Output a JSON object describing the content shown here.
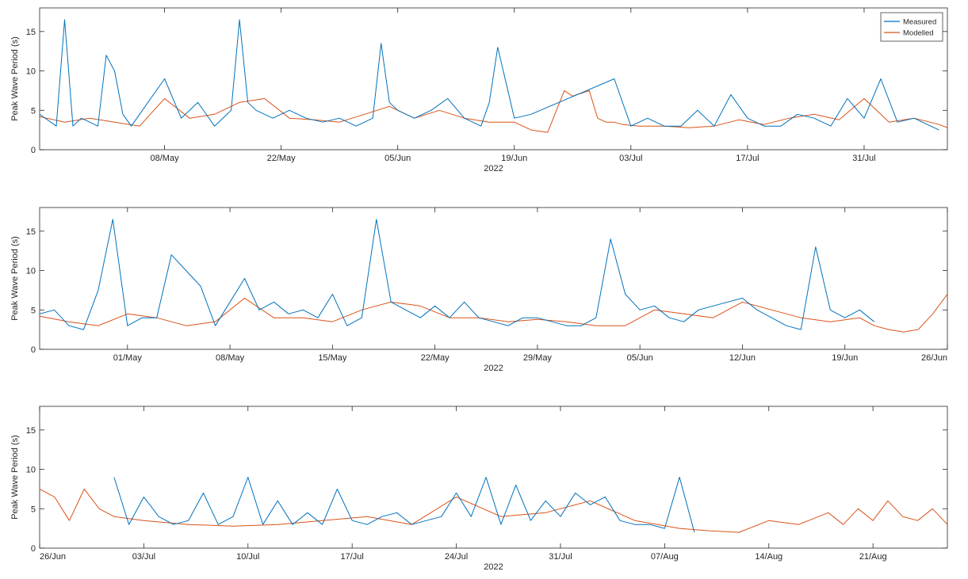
{
  "colors": {
    "measured": "#0072BD",
    "modelled": "#D95319",
    "axes": "#262626"
  },
  "chart_data": [
    {
      "type": "line",
      "ylabel": "Peak Wave Period (s)",
      "xlabel": "2022",
      "xlim": [
        "2022-04-23",
        "2022-08-10"
      ],
      "ylim": [
        0,
        18
      ],
      "yticks": [
        0,
        5,
        10,
        15
      ],
      "xticks": [
        {
          "date": "2022-05-08",
          "label": "08/May"
        },
        {
          "date": "2022-05-22",
          "label": "22/May"
        },
        {
          "date": "2022-06-05",
          "label": "05/Jun"
        },
        {
          "date": "2022-06-19",
          "label": "19/Jun"
        },
        {
          "date": "2022-07-03",
          "label": "03/Jul"
        },
        {
          "date": "2022-07-17",
          "label": "17/Jul"
        },
        {
          "date": "2022-07-31",
          "label": "31/Jul"
        }
      ],
      "grid": false,
      "legend": {
        "position": "top-right",
        "entries": [
          "Measured",
          "Modelled"
        ]
      },
      "series": [
        {
          "name": "Measured",
          "x": [
            "2022-04-23",
            "2022-04-25",
            "2022-04-26",
            "2022-04-27",
            "2022-04-28",
            "2022-04-30",
            "2022-05-01",
            "2022-05-02",
            "2022-05-03",
            "2022-05-04",
            "2022-05-06",
            "2022-05-08",
            "2022-05-10",
            "2022-05-12",
            "2022-05-14",
            "2022-05-16",
            "2022-05-17",
            "2022-05-18",
            "2022-05-19",
            "2022-05-21",
            "2022-05-23",
            "2022-05-25",
            "2022-05-27",
            "2022-05-29",
            "2022-05-31",
            "2022-06-02",
            "2022-06-03",
            "2022-06-04",
            "2022-06-05",
            "2022-06-07",
            "2022-06-09",
            "2022-06-11",
            "2022-06-13",
            "2022-06-15",
            "2022-06-16",
            "2022-06-17",
            "2022-06-19",
            "2022-06-21",
            "2022-07-01",
            "2022-07-03",
            "2022-07-05",
            "2022-07-07",
            "2022-07-09",
            "2022-07-11",
            "2022-07-13",
            "2022-07-15",
            "2022-07-17",
            "2022-07-19",
            "2022-07-21",
            "2022-07-23",
            "2022-07-25",
            "2022-07-27",
            "2022-07-29",
            "2022-07-31",
            "2022-08-02",
            "2022-08-04",
            "2022-08-06",
            "2022-08-08",
            "2022-08-09"
          ],
          "y": [
            4.5,
            3,
            16.5,
            3,
            4,
            3,
            12,
            10,
            4.5,
            3,
            6,
            9,
            4,
            6,
            3,
            5,
            16.5,
            6,
            5,
            4,
            5,
            4,
            3.5,
            4,
            3,
            4,
            13.5,
            6,
            5,
            4,
            5,
            6.5,
            4,
            3,
            6,
            13,
            4,
            4.5,
            9,
            3,
            4,
            3,
            3,
            5,
            3,
            7,
            4,
            3,
            3,
            4.5,
            4,
            3,
            6.5,
            4,
            9,
            3.5,
            4,
            3,
            2.5
          ]
        },
        {
          "name": "Modelled",
          "x": [
            "2022-04-23",
            "2022-04-26",
            "2022-04-29",
            "2022-05-02",
            "2022-05-05",
            "2022-05-08",
            "2022-05-11",
            "2022-05-14",
            "2022-05-17",
            "2022-05-20",
            "2022-05-23",
            "2022-05-26",
            "2022-05-29",
            "2022-06-01",
            "2022-06-04",
            "2022-06-07",
            "2022-06-10",
            "2022-06-13",
            "2022-06-16",
            "2022-06-19",
            "2022-06-21",
            "2022-06-23",
            "2022-06-25",
            "2022-06-26",
            "2022-06-28",
            "2022-06-29",
            "2022-06-30",
            "2022-07-01",
            "2022-07-02",
            "2022-07-04",
            "2022-07-07",
            "2022-07-10",
            "2022-07-13",
            "2022-07-16",
            "2022-07-19",
            "2022-07-22",
            "2022-07-25",
            "2022-07-28",
            "2022-07-31",
            "2022-08-03",
            "2022-08-06",
            "2022-08-09",
            "2022-08-10"
          ],
          "y": [
            4.2,
            3.5,
            4,
            3.5,
            3,
            6.5,
            4,
            4.5,
            6,
            6.5,
            4,
            3.8,
            3.5,
            4.5,
            5.5,
            4,
            5,
            4,
            3.5,
            3.5,
            2.5,
            2.2,
            7.5,
            6.8,
            7.5,
            4,
            3.5,
            3.5,
            3.2,
            3,
            3,
            2.8,
            3,
            3.8,
            3.2,
            4,
            4.5,
            3.8,
            6.5,
            3.5,
            4,
            3.2,
            2.8
          ]
        }
      ]
    },
    {
      "type": "line",
      "ylabel": "Peak Wave Period (s)",
      "xlabel": "2022",
      "xlim": [
        "2022-04-25",
        "2022-06-26"
      ],
      "ylim": [
        0,
        18
      ],
      "yticks": [
        0,
        5,
        10,
        15
      ],
      "xticks": [
        {
          "date": "2022-05-01",
          "label": "01/May"
        },
        {
          "date": "2022-05-08",
          "label": "08/May"
        },
        {
          "date": "2022-05-15",
          "label": "15/May"
        },
        {
          "date": "2022-05-22",
          "label": "22/May"
        },
        {
          "date": "2022-05-29",
          "label": "29/May"
        },
        {
          "date": "2022-06-05",
          "label": "05/Jun"
        },
        {
          "date": "2022-06-12",
          "label": "12/Jun"
        },
        {
          "date": "2022-06-19",
          "label": "19/Jun"
        },
        {
          "date": "2022-06-26",
          "label": "26/Jun"
        }
      ],
      "grid": false,
      "series": [
        {
          "name": "Measured",
          "x": [
            "2022-04-25",
            "2022-04-26",
            "2022-04-27",
            "2022-04-28",
            "2022-04-29",
            "2022-04-30",
            "2022-05-01",
            "2022-05-02",
            "2022-05-03",
            "2022-05-04",
            "2022-05-05",
            "2022-05-06",
            "2022-05-07",
            "2022-05-08",
            "2022-05-09",
            "2022-05-10",
            "2022-05-11",
            "2022-05-12",
            "2022-05-13",
            "2022-05-14",
            "2022-05-15",
            "2022-05-16",
            "2022-05-17",
            "2022-05-18",
            "2022-05-19",
            "2022-05-20",
            "2022-05-21",
            "2022-05-22",
            "2022-05-23",
            "2022-05-24",
            "2022-05-25",
            "2022-05-26",
            "2022-05-27",
            "2022-05-28",
            "2022-05-29",
            "2022-05-30",
            "2022-05-31",
            "2022-06-01",
            "2022-06-02",
            "2022-06-03",
            "2022-06-04",
            "2022-06-05",
            "2022-06-06",
            "2022-06-07",
            "2022-06-08",
            "2022-06-09",
            "2022-06-10",
            "2022-06-11",
            "2022-06-12",
            "2022-06-13",
            "2022-06-14",
            "2022-06-15",
            "2022-06-16",
            "2022-06-17",
            "2022-06-18",
            "2022-06-19",
            "2022-06-20",
            "2022-06-21"
          ],
          "y": [
            4.5,
            5,
            3,
            2.5,
            7.5,
            16.5,
            3,
            4,
            4,
            12,
            10,
            8,
            3,
            6,
            9,
            5,
            6,
            4.5,
            5,
            4,
            7,
            3,
            4,
            16.5,
            6,
            5,
            4,
            5.5,
            4,
            6,
            4,
            3.5,
            3,
            4,
            4,
            3.5,
            3,
            3,
            4,
            14,
            7,
            5,
            5.5,
            4,
            3.5,
            5,
            5.5,
            6,
            6.5,
            5,
            4,
            3,
            2.5,
            13,
            5,
            4,
            5,
            3.5
          ]
        },
        {
          "name": "Modelled",
          "x": [
            "2022-04-25",
            "2022-04-27",
            "2022-04-29",
            "2022-05-01",
            "2022-05-03",
            "2022-05-05",
            "2022-05-07",
            "2022-05-09",
            "2022-05-11",
            "2022-05-13",
            "2022-05-15",
            "2022-05-17",
            "2022-05-19",
            "2022-05-21",
            "2022-05-23",
            "2022-05-25",
            "2022-05-27",
            "2022-05-29",
            "2022-05-31",
            "2022-06-02",
            "2022-06-04",
            "2022-06-06",
            "2022-06-08",
            "2022-06-10",
            "2022-06-12",
            "2022-06-14",
            "2022-06-16",
            "2022-06-18",
            "2022-06-20",
            "2022-06-21",
            "2022-06-22",
            "2022-06-23",
            "2022-06-24",
            "2022-06-25",
            "2022-06-26"
          ],
          "y": [
            4.2,
            3.5,
            3,
            4.5,
            4,
            3,
            3.5,
            6.5,
            4,
            4,
            3.5,
            5,
            6,
            5.5,
            4,
            4,
            3.5,
            3.8,
            3.5,
            3,
            3,
            5,
            4.5,
            4,
            6,
            5,
            4,
            3.5,
            4,
            3,
            2.5,
            2.2,
            2.5,
            4.5,
            7
          ]
        }
      ]
    },
    {
      "type": "line",
      "ylabel": "Peak Wave Period (s)",
      "xlabel": "2022",
      "xlim": [
        "2022-06-26",
        "2022-08-26"
      ],
      "ylim": [
        0,
        18
      ],
      "yticks": [
        0,
        5,
        10,
        15
      ],
      "xticks": [
        {
          "date": "2022-06-26",
          "label": "26/Jun"
        },
        {
          "date": "2022-07-03",
          "label": "03/Jul"
        },
        {
          "date": "2022-07-10",
          "label": "10/Jul"
        },
        {
          "date": "2022-07-17",
          "label": "17/Jul"
        },
        {
          "date": "2022-07-24",
          "label": "24/Jul"
        },
        {
          "date": "2022-07-31",
          "label": "31/Jul"
        },
        {
          "date": "2022-08-07",
          "label": "07/Aug"
        },
        {
          "date": "2022-08-14",
          "label": "14/Aug"
        },
        {
          "date": "2022-08-21",
          "label": "21/Aug"
        }
      ],
      "grid": false,
      "series": [
        {
          "name": "Measured",
          "x": [
            "2022-07-01",
            "2022-07-02",
            "2022-07-03",
            "2022-07-04",
            "2022-07-05",
            "2022-07-06",
            "2022-07-07",
            "2022-07-08",
            "2022-07-09",
            "2022-07-10",
            "2022-07-11",
            "2022-07-12",
            "2022-07-13",
            "2022-07-14",
            "2022-07-15",
            "2022-07-16",
            "2022-07-17",
            "2022-07-18",
            "2022-07-19",
            "2022-07-20",
            "2022-07-21",
            "2022-07-22",
            "2022-07-23",
            "2022-07-24",
            "2022-07-25",
            "2022-07-26",
            "2022-07-27",
            "2022-07-28",
            "2022-07-29",
            "2022-07-30",
            "2022-07-31",
            "2022-08-01",
            "2022-08-02",
            "2022-08-03",
            "2022-08-04",
            "2022-08-05",
            "2022-08-06",
            "2022-08-07",
            "2022-08-08",
            "2022-08-09"
          ],
          "y": [
            9,
            3,
            6.5,
            4,
            3,
            3.5,
            7,
            3,
            4,
            9,
            3,
            6,
            3,
            4.5,
            3,
            7.5,
            3.5,
            3,
            4,
            4.5,
            3,
            3.5,
            4,
            7,
            4,
            9,
            3,
            8,
            3.5,
            6,
            4,
            7,
            5.5,
            6.5,
            3.5,
            3,
            3,
            2.5,
            9,
            2
          ]
        },
        {
          "name": "Modelled",
          "x": [
            "2022-06-26",
            "2022-06-27",
            "2022-06-28",
            "2022-06-29",
            "2022-06-30",
            "2022-07-01",
            "2022-07-03",
            "2022-07-06",
            "2022-07-09",
            "2022-07-12",
            "2022-07-15",
            "2022-07-18",
            "2022-07-21",
            "2022-07-24",
            "2022-07-27",
            "2022-07-30",
            "2022-08-02",
            "2022-08-05",
            "2022-08-08",
            "2022-08-10",
            "2022-08-12",
            "2022-08-14",
            "2022-08-16",
            "2022-08-18",
            "2022-08-19",
            "2022-08-20",
            "2022-08-21",
            "2022-08-22",
            "2022-08-23",
            "2022-08-24",
            "2022-08-25",
            "2022-08-26"
          ],
          "y": [
            7.5,
            6.5,
            3.5,
            7.5,
            5,
            4,
            3.5,
            3,
            2.8,
            3,
            3.5,
            4,
            3,
            6.5,
            4,
            4.5,
            6,
            3.5,
            2.5,
            2.2,
            2,
            3.5,
            3,
            4.5,
            3,
            5,
            3.5,
            6,
            4,
            3.5,
            5,
            3
          ]
        }
      ]
    }
  ]
}
